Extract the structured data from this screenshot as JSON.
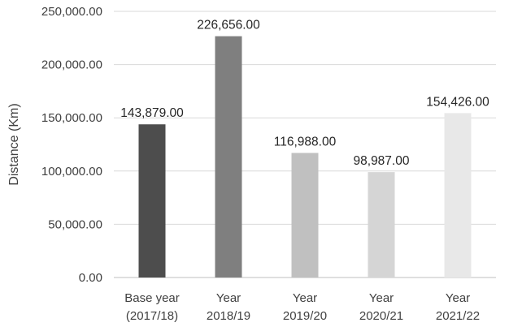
{
  "chart_data": {
    "type": "bar",
    "title": "",
    "xlabel": "",
    "ylabel": "Distance (Km)",
    "ylim": [
      0,
      250000
    ],
    "yticks": [
      0,
      50000,
      100000,
      150000,
      200000,
      250000
    ],
    "ytick_labels": [
      "0.00",
      "50,000.00",
      "100,000.00",
      "150,000.00",
      "200,000.00",
      "250,000.00"
    ],
    "grid": true,
    "legend": "none",
    "categories": [
      [
        "Base year",
        "(2017/18)"
      ],
      [
        "Year",
        "2018/19"
      ],
      [
        "Year",
        "2019/20"
      ],
      [
        "Year",
        "2020/21"
      ],
      [
        "Year",
        "2021/22"
      ]
    ],
    "values": [
      143879,
      226656,
      116988,
      98987,
      154426
    ],
    "data_labels": [
      "143,879.00",
      "226,656.00",
      "116,988.00",
      "98,987.00",
      "154,426.00"
    ],
    "colors": [
      "#4d4d4d",
      "#7f7f7f",
      "#c0c0c0",
      "#d5d5d5",
      "#e8e8e8"
    ]
  }
}
